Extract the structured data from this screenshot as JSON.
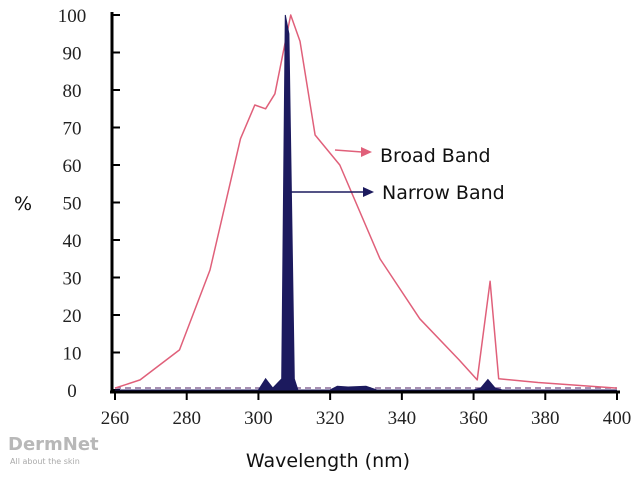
{
  "chart_data": {
    "type": "area",
    "title": "",
    "xlabel": "Wavelength (nm)",
    "ylabel": "%",
    "xlim": [
      260,
      400
    ],
    "ylim": [
      0,
      100
    ],
    "xticks": [
      260,
      280,
      300,
      320,
      340,
      360,
      380,
      400
    ],
    "yticks": [
      0,
      10,
      20,
      30,
      40,
      50,
      60,
      70,
      80,
      90,
      100
    ],
    "grid": false,
    "series": [
      {
        "name": "Broad Band",
        "color": "#e0607a",
        "style": "line",
        "x": [
          260,
          267,
          278,
          286.5,
          295,
          299,
          302,
          304.6,
          309,
          311.6,
          315.8,
          322.7,
          333.9,
          345,
          356,
          361,
          364.6,
          367,
          378,
          400
        ],
        "y": [
          0.5,
          2.7,
          10.7,
          32,
          67,
          76,
          75,
          79,
          100,
          93,
          68,
          60,
          35,
          19,
          8,
          2.7,
          29,
          3,
          2,
          0.5
        ]
      },
      {
        "name": "Narrow Band",
        "color": "#1c1a5e",
        "style": "filled",
        "x": [
          260,
          300,
          302,
          304,
          306.5,
          307.5,
          308.5,
          310,
          311,
          320,
          322,
          325,
          330,
          333,
          360,
          362,
          364,
          366,
          368,
          400
        ],
        "y": [
          0,
          0,
          3,
          0.5,
          3,
          100,
          95,
          3,
          0,
          0,
          1,
          0.8,
          1,
          0,
          0,
          0.5,
          2.8,
          0.5,
          0,
          0
        ]
      }
    ],
    "annotations": [
      "Broad Band",
      "Narrow Band"
    ]
  },
  "watermark": {
    "name": "DermNet",
    "tagline": "All about the skin"
  }
}
